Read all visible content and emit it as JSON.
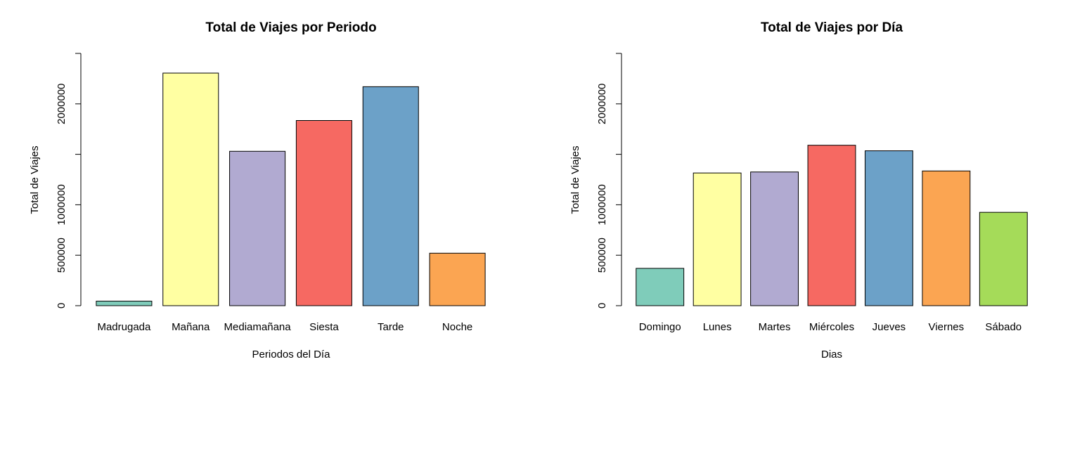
{
  "chart_data": [
    {
      "type": "bar",
      "title": "Total de Viajes por Periodo",
      "xlabel": "Periodos del Día",
      "ylabel": "Total de Viajes",
      "ylim": [
        0,
        2500000
      ],
      "yticks": [
        0,
        500000,
        1000000,
        2000000
      ],
      "categories": [
        "Madrugada",
        "Mañana",
        "Mediamañana",
        "Siesta",
        "Tarde",
        "Noche"
      ],
      "values": [
        45000,
        2305000,
        1530000,
        1835000,
        2170000,
        520000
      ],
      "colors": [
        "#7fccba",
        "#ffffa2",
        "#b1aad1",
        "#f66962",
        "#6ca1c8",
        "#fba552"
      ]
    },
    {
      "type": "bar",
      "title": "Total de Viajes por Día",
      "xlabel": "Dias",
      "ylabel": "Total de Viajes",
      "ylim": [
        0,
        2500000
      ],
      "yticks": [
        0,
        500000,
        1000000,
        2000000
      ],
      "categories": [
        "Domingo",
        "Lunes",
        "Martes",
        "Miércoles",
        "Jueves",
        "Viernes",
        "Sábado"
      ],
      "values": [
        370000,
        1315000,
        1325000,
        1590000,
        1535000,
        1335000,
        925000
      ],
      "colors": [
        "#7fccba",
        "#ffffa2",
        "#b1aad1",
        "#f66962",
        "#6ca1c8",
        "#fba552",
        "#a5db59"
      ]
    }
  ]
}
